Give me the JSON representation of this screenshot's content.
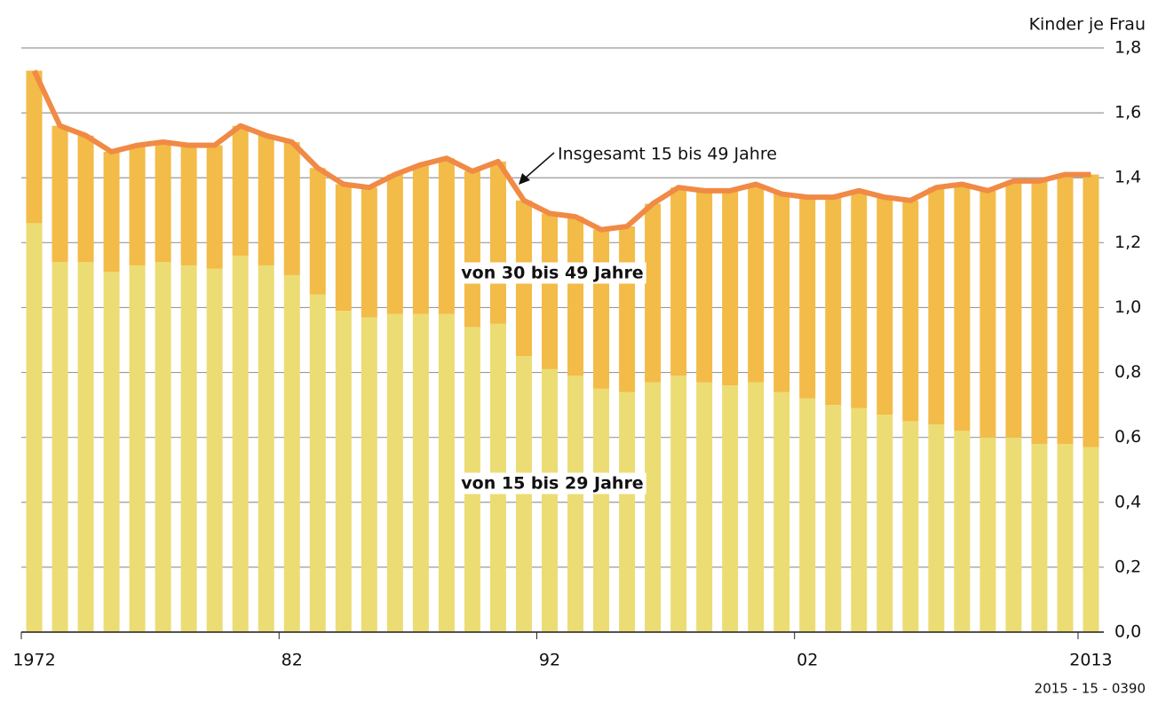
{
  "chart_data": {
    "type": "bar",
    "stacked": true,
    "y_label": "Kinder je Frau",
    "source": "2015 - 15 - 0390",
    "categories": [
      "1972",
      null,
      null,
      null,
      null,
      null,
      null,
      null,
      null,
      null,
      "82",
      null,
      null,
      null,
      null,
      null,
      null,
      null,
      null,
      null,
      "92",
      null,
      null,
      null,
      null,
      null,
      null,
      null,
      null,
      null,
      "02",
      null,
      null,
      null,
      null,
      null,
      null,
      null,
      null,
      null,
      null,
      "2013"
    ],
    "series": [
      {
        "name": "von 15 bis 29 Jahre",
        "type": "bar",
        "color": "#ecdc74",
        "values": [
          1.26,
          1.14,
          1.14,
          1.11,
          1.13,
          1.14,
          1.13,
          1.12,
          1.16,
          1.13,
          1.1,
          1.04,
          0.99,
          0.97,
          0.98,
          0.98,
          0.98,
          0.94,
          0.95,
          0.85,
          0.81,
          0.79,
          0.75,
          0.74,
          0.77,
          0.79,
          0.77,
          0.76,
          0.77,
          0.74,
          0.72,
          0.7,
          0.69,
          0.67,
          0.65,
          0.64,
          0.62,
          0.6,
          0.6,
          0.58,
          0.58,
          0.57
        ]
      },
      {
        "name": "von 30 bis 49 Jahre",
        "type": "bar",
        "color": "#f3bb47",
        "values": [
          0.47,
          0.42,
          0.39,
          0.37,
          0.37,
          0.37,
          0.37,
          0.38,
          0.4,
          0.4,
          0.41,
          0.39,
          0.39,
          0.4,
          0.43,
          0.46,
          0.48,
          0.48,
          0.5,
          0.48,
          0.48,
          0.49,
          0.49,
          0.51,
          0.55,
          0.58,
          0.59,
          0.6,
          0.61,
          0.61,
          0.62,
          0.64,
          0.67,
          0.67,
          0.68,
          0.73,
          0.76,
          0.76,
          0.79,
          0.81,
          0.83,
          0.84
        ]
      },
      {
        "name": "Insgesamt 15 bis 49 Jahre",
        "type": "line",
        "color": "#f08a45",
        "values": [
          1.73,
          1.56,
          1.53,
          1.48,
          1.5,
          1.51,
          1.5,
          1.5,
          1.56,
          1.53,
          1.51,
          1.43,
          1.38,
          1.37,
          1.41,
          1.44,
          1.46,
          1.42,
          1.45,
          1.33,
          1.29,
          1.28,
          1.24,
          1.25,
          1.32,
          1.37,
          1.36,
          1.36,
          1.38,
          1.35,
          1.34,
          1.34,
          1.36,
          1.34,
          1.33,
          1.37,
          1.38,
          1.36,
          1.39,
          1.39,
          1.41,
          1.41
        ]
      }
    ],
    "ylim": [
      0,
      1.8
    ],
    "yticks": [
      {
        "value": 0,
        "label": "0,0"
      },
      {
        "value": 0.2,
        "label": "0,2"
      },
      {
        "value": 0.4,
        "label": "0,4"
      },
      {
        "value": 0.6,
        "label": "0,6"
      },
      {
        "value": 0.8,
        "label": "0,8"
      },
      {
        "value": 1,
        "label": "1,0"
      },
      {
        "value": 1.2,
        "label": "1,2"
      },
      {
        "value": 1.4,
        "label": "1,4"
      },
      {
        "value": 1.6,
        "label": "1,6"
      },
      {
        "value": 1.8,
        "label": "1,8"
      }
    ],
    "grid": true
  }
}
